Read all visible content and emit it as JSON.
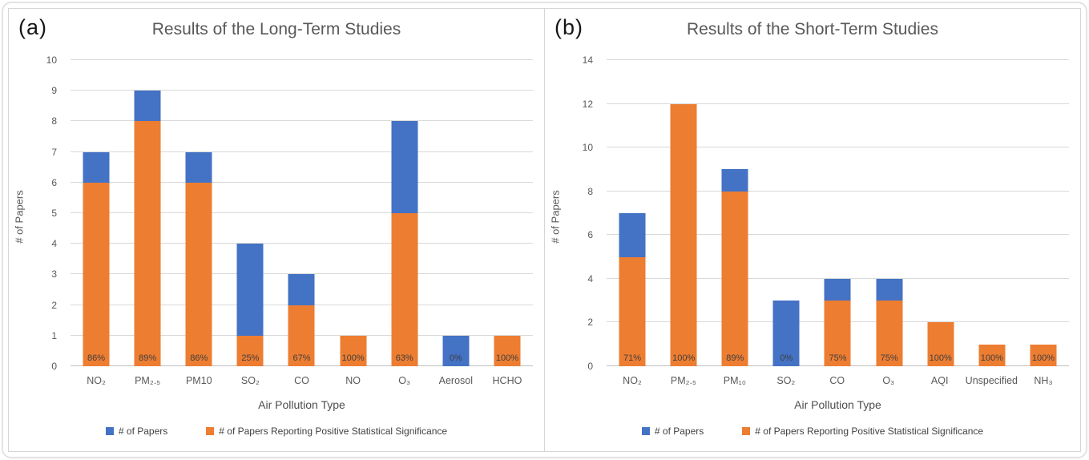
{
  "legend": {
    "series1_label": "# of Papers",
    "series2_label": "# of Papers Reporting Positive Statistical Significance"
  },
  "colors": {
    "series1_blue": "#4472C4",
    "series2_orange": "#ED7D31",
    "title_gray": "#595959",
    "gridline_gray": "#D9D9D9"
  },
  "chart_data": [
    {
      "type": "bar",
      "panel_label": "(a)",
      "title": "Results of the Long-Term Studies",
      "xlabel": "Air Pollution Type",
      "ylabel": "# of Papers",
      "ylim": [
        0,
        10
      ],
      "ytick_step": 1,
      "grid": true,
      "legend_position": "bottom",
      "categories": [
        "NO₂",
        "PM₂.₅",
        "PM10",
        "SO₂",
        "CO",
        "NO",
        "O₃",
        "Aerosol",
        "HCHO"
      ],
      "series": [
        {
          "name": "# of Papers",
          "values": [
            7,
            9,
            7,
            4,
            3,
            1,
            8,
            1,
            1
          ]
        },
        {
          "name": "# of Papers Reporting Positive Statistical Significance",
          "values": [
            6,
            8,
            6,
            1,
            2,
            1,
            5,
            0,
            1
          ]
        }
      ],
      "bar_labels": [
        "86%",
        "89%",
        "86%",
        "25%",
        "67%",
        "100%",
        "63%",
        "0%",
        "100%"
      ]
    },
    {
      "type": "bar",
      "panel_label": "(b)",
      "title": "Results of the Short-Term Studies",
      "xlabel": "Air Pollution Type",
      "ylabel": "# of Papers",
      "ylim": [
        0,
        14
      ],
      "ytick_step": 2,
      "grid": true,
      "legend_position": "bottom",
      "categories": [
        "NO₂",
        "PM₂.₅",
        "PM₁₀",
        "SO₂",
        "CO",
        "O₃",
        "AQI",
        "Unspecified",
        "NH₃"
      ],
      "series": [
        {
          "name": "# of Papers",
          "values": [
            7,
            12,
            9,
            3,
            4,
            4,
            2,
            1,
            1
          ]
        },
        {
          "name": "# of Papers Reporting Positive Statistical Significance",
          "values": [
            5,
            12,
            8,
            0,
            3,
            3,
            2,
            1,
            1
          ]
        }
      ],
      "bar_labels": [
        "71%",
        "100%",
        "89%",
        "0%",
        "75%",
        "75%",
        "100%",
        "100%",
        "100%"
      ]
    }
  ]
}
